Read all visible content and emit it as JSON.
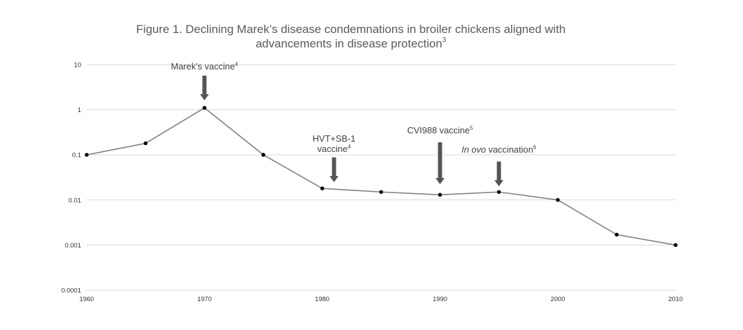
{
  "chart_data": {
    "type": "line",
    "title_line1": "Figure 1. Declining Marek’s disease condemnations in broiler chickens aligned with",
    "title_line2": "advancements in disease protection",
    "title_sup": "3",
    "y_scale": "log",
    "ylim": [
      0.0001,
      10
    ],
    "xlim": [
      1960,
      2010
    ],
    "y_ticks": [
      {
        "value": 10,
        "label": "10"
      },
      {
        "value": 1,
        "label": "1"
      },
      {
        "value": 0.1,
        "label": "0.1"
      },
      {
        "value": 0.01,
        "label": "0.01"
      },
      {
        "value": 0.001,
        "label": "0.001"
      },
      {
        "value": 0.0001,
        "label": "0.0001"
      }
    ],
    "x_ticks": [
      {
        "value": 1960,
        "label": "1960"
      },
      {
        "value": 1970,
        "label": "1970"
      },
      {
        "value": 1980,
        "label": "1980"
      },
      {
        "value": 1990,
        "label": "1990"
      },
      {
        "value": 2000,
        "label": "2000"
      },
      {
        "value": 2010,
        "label": "2010"
      }
    ],
    "grid": true,
    "series": [
      {
        "name": "Marek’s disease condemnations",
        "color": "#808080",
        "marker_color": "#000000",
        "x": [
          1960,
          1965,
          1970,
          1975,
          1980,
          1985,
          1990,
          1995,
          2000,
          2005,
          2010
        ],
        "y": [
          0.1,
          0.18,
          1.1,
          0.1,
          0.018,
          0.015,
          0.013,
          0.015,
          0.01,
          0.0017,
          0.001
        ]
      }
    ],
    "annotations": [
      {
        "lines": [
          "Marek’s vaccine"
        ],
        "sup": "4",
        "x": 1970,
        "italic_prefix": ""
      },
      {
        "lines": [
          "HVT+SB-1",
          "vaccine"
        ],
        "sup": "4",
        "x": 1981,
        "italic_prefix": ""
      },
      {
        "lines": [
          "CVI988 vaccine"
        ],
        "sup": "5",
        "x": 1990,
        "italic_prefix": ""
      },
      {
        "lines": [
          " vaccination"
        ],
        "sup": "6",
        "x": 1995,
        "italic_prefix": "In ovo"
      }
    ],
    "arrow_color": "#555555"
  }
}
